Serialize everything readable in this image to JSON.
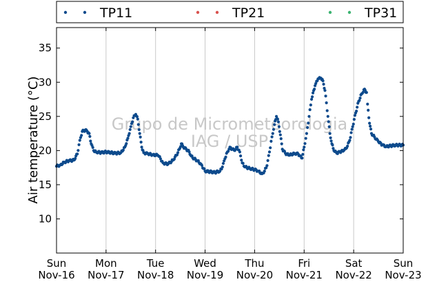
{
  "chart_data": {
    "type": "scatter",
    "ylabel": "Air temperature (°C)",
    "xlabel": "",
    "ylim": [
      5,
      38
    ],
    "yticks": [
      10,
      15,
      20,
      25,
      30,
      35
    ],
    "xlim": [
      0,
      7
    ],
    "x_unit": "days from Sun Nov-16 00:00",
    "xticks": [
      {
        "day": "Sun",
        "date": "Nov-16"
      },
      {
        "day": "Mon",
        "date": "Nov-17"
      },
      {
        "day": "Tue",
        "date": "Nov-18"
      },
      {
        "day": "Wed",
        "date": "Nov-19"
      },
      {
        "day": "Thu",
        "date": "Nov-20"
      },
      {
        "day": "Fri",
        "date": "Nov-21"
      },
      {
        "day": "Sat",
        "date": "Nov-22"
      },
      {
        "day": "Sun",
        "date": "Nov-23"
      }
    ],
    "grid": "vertical",
    "legend_position": "top",
    "watermark": [
      "Grupo de Micrometeorologia",
      "IAG / USP"
    ],
    "series": [
      {
        "name": "TP11",
        "color": "#0d4a8c",
        "points": [
          [
            0.0,
            17.7
          ],
          [
            0.08,
            17.9
          ],
          [
            0.15,
            18.3
          ],
          [
            0.25,
            18.5
          ],
          [
            0.35,
            18.6
          ],
          [
            0.42,
            19.5
          ],
          [
            0.47,
            21.5
          ],
          [
            0.52,
            22.8
          ],
          [
            0.58,
            23.0
          ],
          [
            0.62,
            22.8
          ],
          [
            0.66,
            22.5
          ],
          [
            0.7,
            21.0
          ],
          [
            0.75,
            20.0
          ],
          [
            0.8,
            19.8
          ],
          [
            0.9,
            19.7
          ],
          [
            1.0,
            19.8
          ],
          [
            1.1,
            19.7
          ],
          [
            1.2,
            19.6
          ],
          [
            1.3,
            19.7
          ],
          [
            1.38,
            20.5
          ],
          [
            1.44,
            21.8
          ],
          [
            1.5,
            23.5
          ],
          [
            1.55,
            24.8
          ],
          [
            1.6,
            25.3
          ],
          [
            1.64,
            24.6
          ],
          [
            1.68,
            22.5
          ],
          [
            1.72,
            20.5
          ],
          [
            1.76,
            19.7
          ],
          [
            1.85,
            19.5
          ],
          [
            1.95,
            19.4
          ],
          [
            2.05,
            19.3
          ],
          [
            2.1,
            18.8
          ],
          [
            2.15,
            18.2
          ],
          [
            2.25,
            18.0
          ],
          [
            2.35,
            18.6
          ],
          [
            2.42,
            19.3
          ],
          [
            2.48,
            20.2
          ],
          [
            2.52,
            21.0
          ],
          [
            2.56,
            20.5
          ],
          [
            2.62,
            20.2
          ],
          [
            2.68,
            19.8
          ],
          [
            2.72,
            19.2
          ],
          [
            2.78,
            18.8
          ],
          [
            2.85,
            18.5
          ],
          [
            2.92,
            18.0
          ],
          [
            3.0,
            17.0
          ],
          [
            3.1,
            16.9
          ],
          [
            3.2,
            16.8
          ],
          [
            3.3,
            17.0
          ],
          [
            3.35,
            17.6
          ],
          [
            3.4,
            18.8
          ],
          [
            3.45,
            19.8
          ],
          [
            3.5,
            20.5
          ],
          [
            3.55,
            20.2
          ],
          [
            3.6,
            20.0
          ],
          [
            3.65,
            20.5
          ],
          [
            3.7,
            19.8
          ],
          [
            3.75,
            18.2
          ],
          [
            3.8,
            17.6
          ],
          [
            3.9,
            17.4
          ],
          [
            4.0,
            17.2
          ],
          [
            4.08,
            17.0
          ],
          [
            4.15,
            16.6
          ],
          [
            4.2,
            17.0
          ],
          [
            4.25,
            17.8
          ],
          [
            4.3,
            19.8
          ],
          [
            4.35,
            22.0
          ],
          [
            4.4,
            23.8
          ],
          [
            4.44,
            25.0
          ],
          [
            4.48,
            24.2
          ],
          [
            4.52,
            22.3
          ],
          [
            4.56,
            20.2
          ],
          [
            4.62,
            19.6
          ],
          [
            4.7,
            19.3
          ],
          [
            4.8,
            19.6
          ],
          [
            4.88,
            19.5
          ],
          [
            4.92,
            19.2
          ],
          [
            4.96,
            18.9
          ],
          [
            5.0,
            20.5
          ],
          [
            5.05,
            22.5
          ],
          [
            5.1,
            25.0
          ],
          [
            5.15,
            27.5
          ],
          [
            5.22,
            29.5
          ],
          [
            5.28,
            30.5
          ],
          [
            5.34,
            30.6
          ],
          [
            5.38,
            30.2
          ],
          [
            5.42,
            28.8
          ],
          [
            5.48,
            25.0
          ],
          [
            5.52,
            22.5
          ],
          [
            5.56,
            21.0
          ],
          [
            5.6,
            20.0
          ],
          [
            5.66,
            19.6
          ],
          [
            5.72,
            19.8
          ],
          [
            5.8,
            20.0
          ],
          [
            5.86,
            20.4
          ],
          [
            5.92,
            21.5
          ],
          [
            5.98,
            23.5
          ],
          [
            6.04,
            25.5
          ],
          [
            6.1,
            27.2
          ],
          [
            6.16,
            28.3
          ],
          [
            6.22,
            29.0
          ],
          [
            6.26,
            28.5
          ],
          [
            6.28,
            26.8
          ],
          [
            6.32,
            24.0
          ],
          [
            6.36,
            22.5
          ],
          [
            6.42,
            22.0
          ],
          [
            6.5,
            21.3
          ],
          [
            6.58,
            20.8
          ],
          [
            6.66,
            20.6
          ],
          [
            6.75,
            20.7
          ],
          [
            6.85,
            20.8
          ],
          [
            7.0,
            20.8
          ]
        ]
      },
      {
        "name": "TP21",
        "color": "#d9534f",
        "points": []
      },
      {
        "name": "TP31",
        "color": "#3cb371",
        "points": []
      }
    ]
  }
}
